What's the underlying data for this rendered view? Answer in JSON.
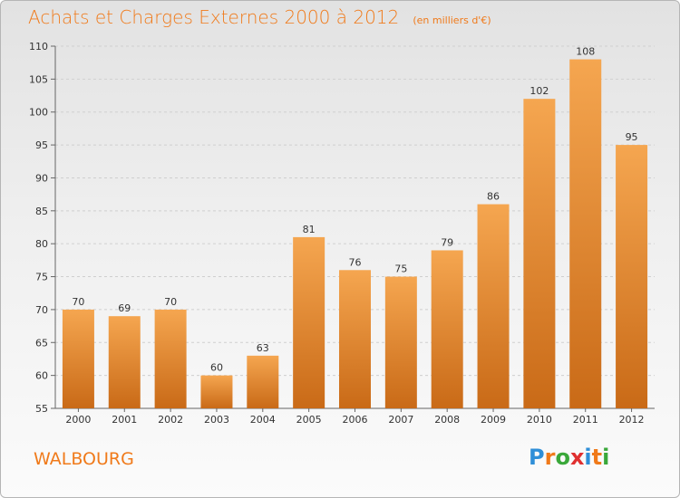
{
  "header": {
    "title": "Achats et Charges Externes 2000 à 2012",
    "subtitle": "(en milliers d'€)"
  },
  "footer": {
    "commune": "WALBOURG",
    "brand": "Proxiti",
    "brand_letters": [
      {
        "ch": "P",
        "color": "#2f8fd8"
      },
      {
        "ch": "r",
        "color": "#f07a1a"
      },
      {
        "ch": "o",
        "color": "#3aa83a"
      },
      {
        "ch": "x",
        "color": "#e03030"
      },
      {
        "ch": "i",
        "color": "#2f8fd8"
      },
      {
        "ch": "t",
        "color": "#f07a1a"
      },
      {
        "ch": "i",
        "color": "#3aa83a"
      }
    ]
  },
  "colors": {
    "accent": "#f07a1a",
    "bar_top": "#f5a650",
    "bar_bottom": "#c96a17"
  },
  "chart_data": {
    "type": "bar",
    "title": "Achats et Charges Externes 2000 à 2012",
    "subtitle": "(en milliers d'€)",
    "categories": [
      "2000",
      "2001",
      "2002",
      "2003",
      "2004",
      "2005",
      "2006",
      "2007",
      "2008",
      "2009",
      "2010",
      "2011",
      "2012"
    ],
    "values": [
      70,
      69,
      70,
      60,
      63,
      81,
      76,
      75,
      79,
      86,
      102,
      108,
      95
    ],
    "ylim": [
      55,
      110
    ],
    "yticks": [
      55,
      60,
      65,
      70,
      75,
      80,
      85,
      90,
      95,
      100,
      105,
      110
    ],
    "grid": true,
    "data_labels": true
  }
}
